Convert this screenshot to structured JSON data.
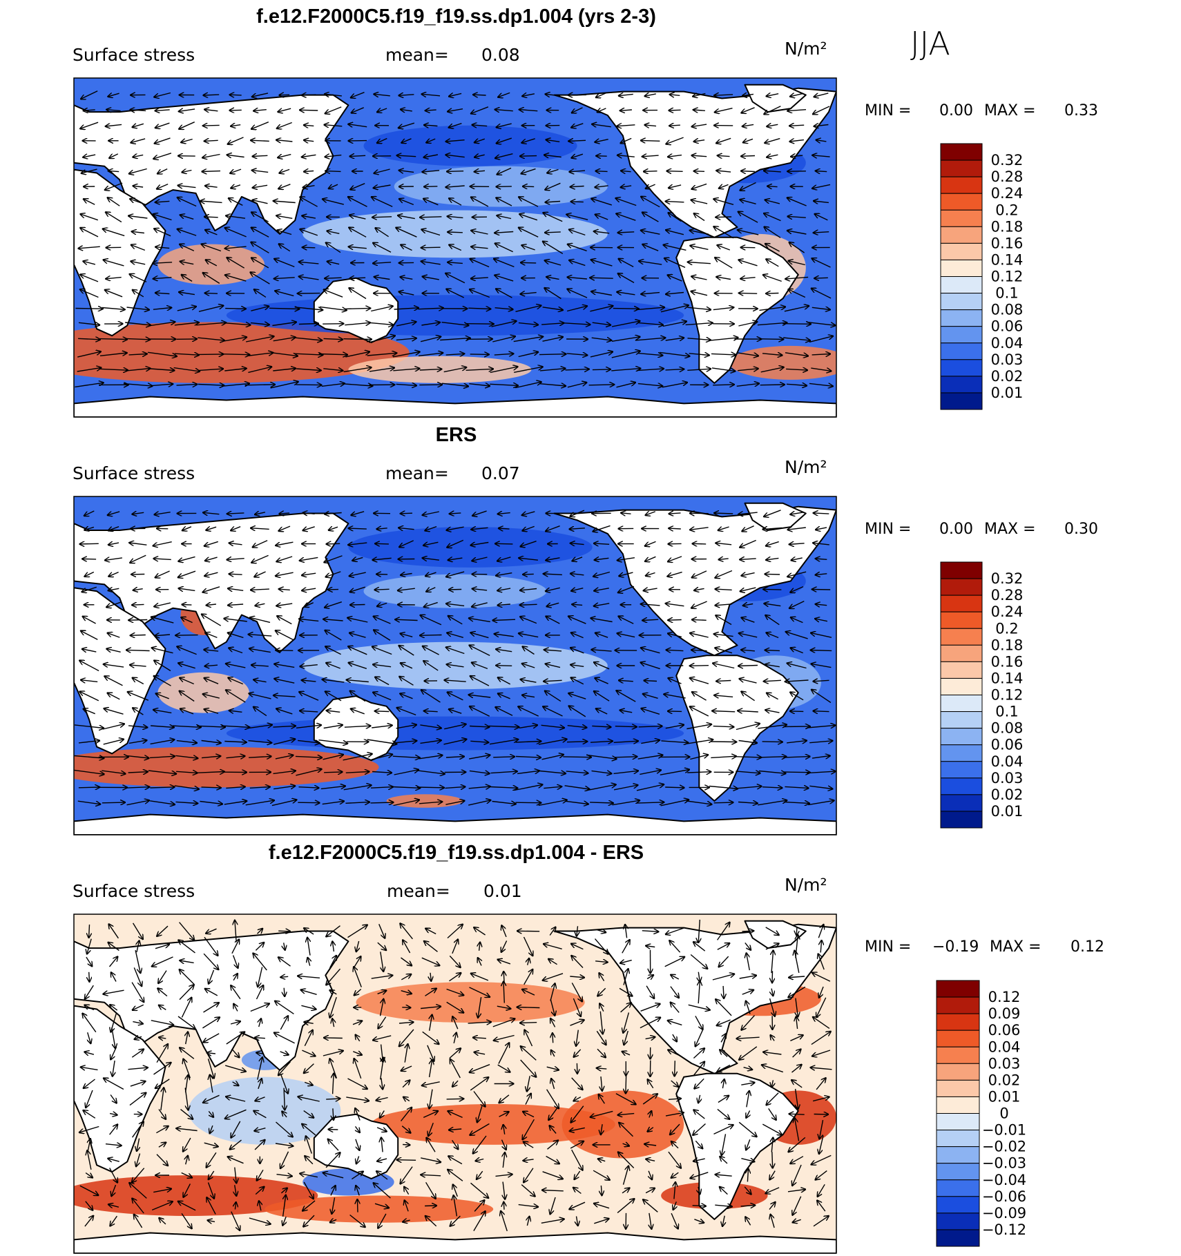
{
  "season": "JJA",
  "panels": [
    {
      "title": "f.e12.F2000C5.f19_f19.ss.dp1.004 (yrs 2-3)",
      "variable": "Surface stress",
      "mean_label": "mean=",
      "mean_value": "0.08",
      "units": "N/m²",
      "min_label": "MIN =",
      "min_value": "0.00",
      "max_label": "MAX =",
      "max_value": "0.33"
    },
    {
      "title": "ERS",
      "variable": "Surface stress",
      "mean_label": "mean=",
      "mean_value": "0.07",
      "units": "N/m²",
      "min_label": "MIN =",
      "min_value": "0.00",
      "max_label": "MAX =",
      "max_value": "0.30"
    },
    {
      "title": "f.e12.F2000C5.f19_f19.ss.dp1.004 - ERS",
      "variable": "Surface stress",
      "mean_label": "mean=",
      "mean_value": "0.01",
      "units": "N/m²",
      "min_label": "MIN =",
      "min_value": "−0.19",
      "max_label": "MAX =",
      "max_value": "0.12"
    }
  ],
  "chart_data": [
    {
      "type": "heatmap",
      "colorbar": {
        "labels": [
          "0.32",
          "0.28",
          "0.24",
          "0.2",
          "0.18",
          "0.16",
          "0.14",
          "0.12",
          "0.1",
          "0.08",
          "0.06",
          "0.04",
          "0.03",
          "0.02",
          "0.01"
        ],
        "colors": [
          "#7f0000",
          "#b11b0b",
          "#d83512",
          "#ee5a28",
          "#f6804f",
          "#f7a47c",
          "#fbc8a9",
          "#fdebd8",
          "#dce9f8",
          "#b5d0f5",
          "#8cb3f2",
          "#6394ef",
          "#3b70eb",
          "#1b4edf",
          "#0a2eb8",
          "#001a8c"
        ]
      }
    },
    {
      "type": "heatmap",
      "colorbar": {
        "labels": [
          "0.32",
          "0.28",
          "0.24",
          "0.2",
          "0.18",
          "0.16",
          "0.14",
          "0.12",
          "0.1",
          "0.08",
          "0.06",
          "0.04",
          "0.03",
          "0.02",
          "0.01"
        ],
        "colors": [
          "#7f0000",
          "#b11b0b",
          "#d83512",
          "#ee5a28",
          "#f6804f",
          "#f7a47c",
          "#fbc8a9",
          "#fdebd8",
          "#dce9f8",
          "#b5d0f5",
          "#8cb3f2",
          "#6394ef",
          "#3b70eb",
          "#1b4edf",
          "#0a2eb8",
          "#001a8c"
        ]
      }
    },
    {
      "type": "heatmap",
      "colorbar": {
        "labels": [
          "0.12",
          "0.09",
          "0.06",
          "0.04",
          "0.03",
          "0.02",
          "0.01",
          "0",
          "−0.01",
          "−0.02",
          "−0.03",
          "−0.04",
          "−0.06",
          "−0.09",
          "−0.12"
        ],
        "colors": [
          "#7f0000",
          "#b11b0b",
          "#d83512",
          "#ee5a28",
          "#f6804f",
          "#f7a47c",
          "#fbc8a9",
          "#fdebd8",
          "#dce9f8",
          "#b5d0f5",
          "#8cb3f2",
          "#6394ef",
          "#3b70eb",
          "#1b4edf",
          "#0a2eb8",
          "#001a8c"
        ]
      }
    }
  ]
}
